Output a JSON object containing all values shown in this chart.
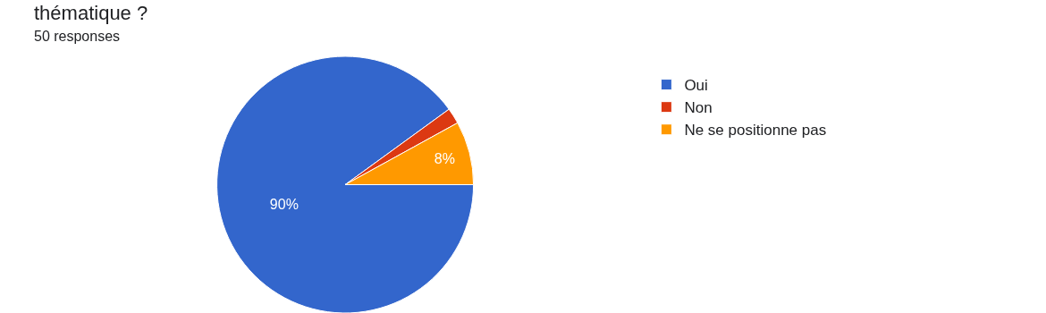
{
  "chart_data": {
    "type": "pie",
    "title": "thématique ?",
    "subtitle": "50 responses",
    "categories": [
      "Oui",
      "Non",
      "Ne se positionne pas"
    ],
    "values": [
      90,
      2,
      8
    ],
    "colors": [
      "#3366cc",
      "#dc3912",
      "#ff9900"
    ],
    "value_labels": [
      "90%",
      null,
      "8%"
    ],
    "legend": "top right"
  }
}
